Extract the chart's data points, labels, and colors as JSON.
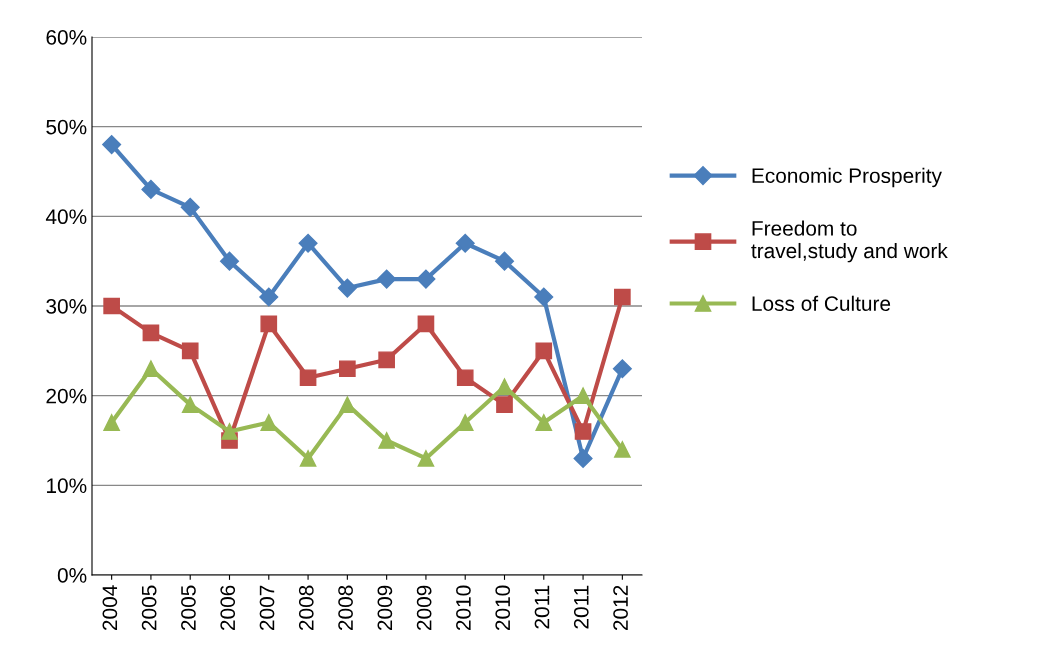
{
  "chart_data": {
    "type": "line",
    "categories": [
      "2004",
      "2005",
      "2005",
      "2006",
      "2007",
      "2008",
      "2008",
      "2009",
      "2009",
      "2010",
      "2010",
      "2011",
      "2011",
      "2012"
    ],
    "series": [
      {
        "name": "Economic Prosperity",
        "color": "#4a7ebb",
        "marker": "diamond",
        "values": [
          48,
          43,
          41,
          35,
          31,
          37,
          32,
          33,
          33,
          37,
          35,
          31,
          13,
          23
        ]
      },
      {
        "name": "Freedom to\ntravel,study and work",
        "color": "#be4b48",
        "marker": "square",
        "values": [
          30,
          27,
          25,
          15,
          28,
          22,
          23,
          24,
          28,
          22,
          19,
          25,
          16,
          31
        ]
      },
      {
        "name": "Loss of Culture",
        "color": "#98b954",
        "marker": "triangle",
        "values": [
          17,
          23,
          19,
          16,
          17,
          13,
          19,
          15,
          13,
          17,
          21,
          17,
          20,
          14
        ]
      }
    ],
    "ylim": [
      0,
      60
    ],
    "yticks": [
      {
        "value": 0,
        "label": "0%"
      },
      {
        "value": 10,
        "label": "10%"
      },
      {
        "value": 20,
        "label": "20%"
      },
      {
        "value": 30,
        "label": "30%"
      },
      {
        "value": 40,
        "label": "40%"
      },
      {
        "value": 50,
        "label": "50%"
      },
      {
        "value": 60,
        "label": "60%"
      }
    ],
    "grid": "y",
    "legend": "right",
    "line_style": "solid"
  }
}
